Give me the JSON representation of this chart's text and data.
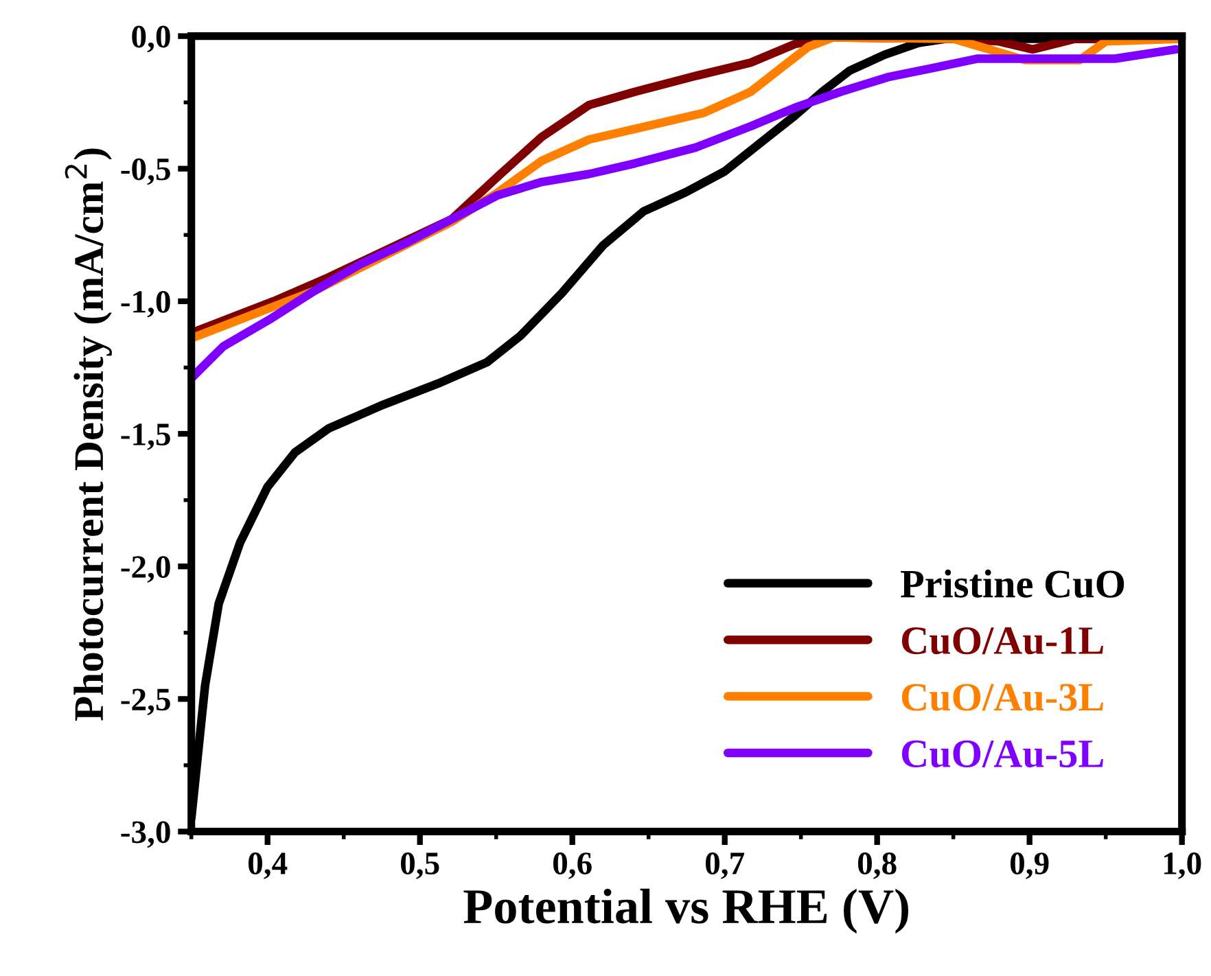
{
  "chart_data": {
    "type": "line",
    "xlabel": "Potential vs RHE (V)",
    "ylabel": "Photocurrent Density (mA/cm$^{2}$)",
    "xlim": [
      0.35,
      1.0
    ],
    "ylim": [
      -3.0,
      0.0
    ],
    "xticks": [
      {
        "value": 0.4,
        "label": "0,4"
      },
      {
        "value": 0.5,
        "label": "0,5"
      },
      {
        "value": 0.6,
        "label": "0,6"
      },
      {
        "value": 0.7,
        "label": "0,7"
      },
      {
        "value": 0.8,
        "label": "0,8"
      },
      {
        "value": 0.9,
        "label": "0,9"
      },
      {
        "value": 1.0,
        "label": "1,0"
      }
    ],
    "yticks": [
      {
        "value": -3.0,
        "label": "-3,0"
      },
      {
        "value": -2.5,
        "label": "-2,5"
      },
      {
        "value": -2.0,
        "label": "-2,0"
      },
      {
        "value": -1.5,
        "label": "-1,5"
      },
      {
        "value": -1.0,
        "label": "-1,0"
      },
      {
        "value": -0.5,
        "label": "-0,5"
      },
      {
        "value": 0.0,
        "label": "0,0"
      }
    ],
    "legend": "bottom right",
    "grid": false,
    "series": [
      {
        "name": "Pristine CuO",
        "color": "#000000",
        "x": [
          0.35,
          0.359,
          0.368,
          0.382,
          0.4,
          0.418,
          0.44,
          0.476,
          0.512,
          0.544,
          0.566,
          0.593,
          0.62,
          0.647,
          0.674,
          0.7,
          0.724,
          0.746,
          0.764,
          0.782,
          0.805,
          0.827,
          0.845,
          0.9,
          1.0
        ],
        "values": [
          -2.95,
          -2.45,
          -2.14,
          -1.91,
          -1.7,
          -1.57,
          -1.48,
          -1.39,
          -1.31,
          -1.23,
          -1.13,
          -0.97,
          -0.79,
          -0.66,
          -0.59,
          -0.51,
          -0.4,
          -0.3,
          -0.21,
          -0.13,
          -0.07,
          -0.026,
          -0.01,
          -0.01,
          -0.01
        ]
      },
      {
        "name": "CuO/Au-1L",
        "color": "#7f0000",
        "x": [
          0.35,
          0.404,
          0.44,
          0.521,
          0.551,
          0.58,
          0.611,
          0.641,
          0.681,
          0.717,
          0.746,
          0.771,
          0.85,
          0.88,
          0.902,
          0.93,
          1.0
        ],
        "values": [
          -1.12,
          -1.0,
          -0.91,
          -0.69,
          -0.53,
          -0.38,
          -0.26,
          -0.21,
          -0.15,
          -0.1,
          -0.03,
          -0.005,
          -0.01,
          -0.02,
          -0.05,
          -0.01,
          -0.01
        ]
      },
      {
        "name": "CuO/Au-3L",
        "color": "#ff8000",
        "x": [
          0.35,
          0.431,
          0.521,
          0.551,
          0.58,
          0.611,
          0.641,
          0.686,
          0.717,
          0.737,
          0.755,
          0.771,
          0.85,
          0.897,
          0.933,
          0.95,
          1.0
        ],
        "values": [
          -1.14,
          -0.96,
          -0.7,
          -0.59,
          -0.47,
          -0.39,
          -0.35,
          -0.29,
          -0.21,
          -0.12,
          -0.04,
          -0.005,
          -0.01,
          -0.09,
          -0.09,
          -0.02,
          -0.01
        ]
      },
      {
        "name": "CuO/Au-5L",
        "color": "#8000ff",
        "x": [
          0.35,
          0.371,
          0.401,
          0.431,
          0.461,
          0.491,
          0.521,
          0.551,
          0.58,
          0.611,
          0.641,
          0.681,
          0.717,
          0.746,
          0.776,
          0.807,
          0.837,
          0.866,
          0.956,
          0.996
        ],
        "values": [
          -1.29,
          -1.17,
          -1.07,
          -0.96,
          -0.86,
          -0.78,
          -0.69,
          -0.6,
          -0.55,
          -0.52,
          -0.48,
          -0.42,
          -0.34,
          -0.27,
          -0.21,
          -0.155,
          -0.12,
          -0.085,
          -0.085,
          -0.05
        ]
      }
    ]
  }
}
